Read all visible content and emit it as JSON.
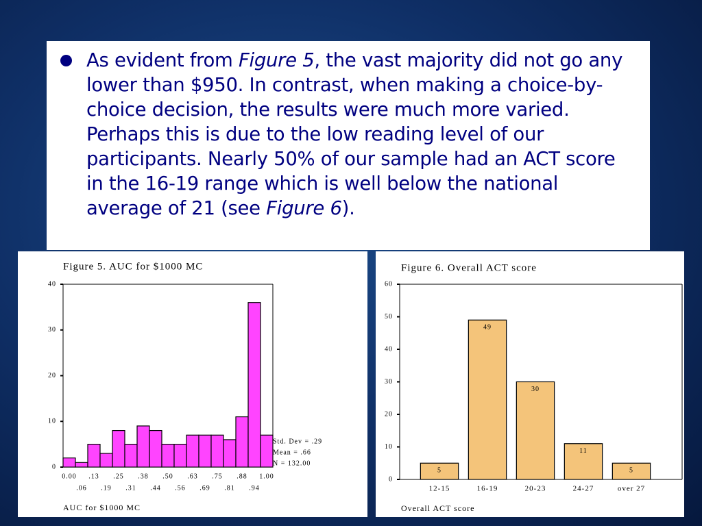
{
  "bullet": [
    "As evident from ",
    "Figure 5",
    ", the vast majority did not go any lower than $950.  In contrast, when making a choice-by-choice decision, the results were much more varied.  Perhaps this is due to the low reading level of our participants.  Nearly 50% of our sample had an ACT score in the 16-19 range which is well below the national average of 21 (see ",
    "Figure 6",
    ")."
  ],
  "chart_data": [
    {
      "type": "bar",
      "title": "Figure 5.  AUC for $1000 MC",
      "x_label": "AUC for $1000 MC",
      "categories": [
        "0.00",
        ".06",
        ".13",
        ".19",
        ".25",
        ".31",
        ".38",
        ".44",
        ".50",
        ".56",
        ".63",
        ".69",
        ".75",
        ".81",
        ".88",
        ".94",
        "1.00"
      ],
      "values": [
        2,
        1,
        5,
        3,
        8,
        5,
        9,
        8,
        5,
        5,
        7,
        7,
        7,
        6,
        11,
        36,
        7
      ],
      "color": "#ff44ff",
      "ylim": [
        0,
        40
      ],
      "yticks": [
        0,
        10,
        20,
        30,
        40
      ],
      "annotations": [
        "Std. Dev = .29",
        "Mean = .66",
        "N = 132.00"
      ]
    },
    {
      "type": "bar",
      "title": "Figure 6. Overall ACT score",
      "x_label": "Overall ACT score",
      "categories": [
        "12-15",
        "16-19",
        "20-23",
        "24-27",
        "over 27"
      ],
      "values": [
        5,
        49,
        30,
        11,
        5
      ],
      "color": "#f4c47a",
      "ylim": [
        0,
        60
      ],
      "yticks": [
        0,
        10,
        20,
        30,
        40,
        50,
        60
      ]
    }
  ]
}
